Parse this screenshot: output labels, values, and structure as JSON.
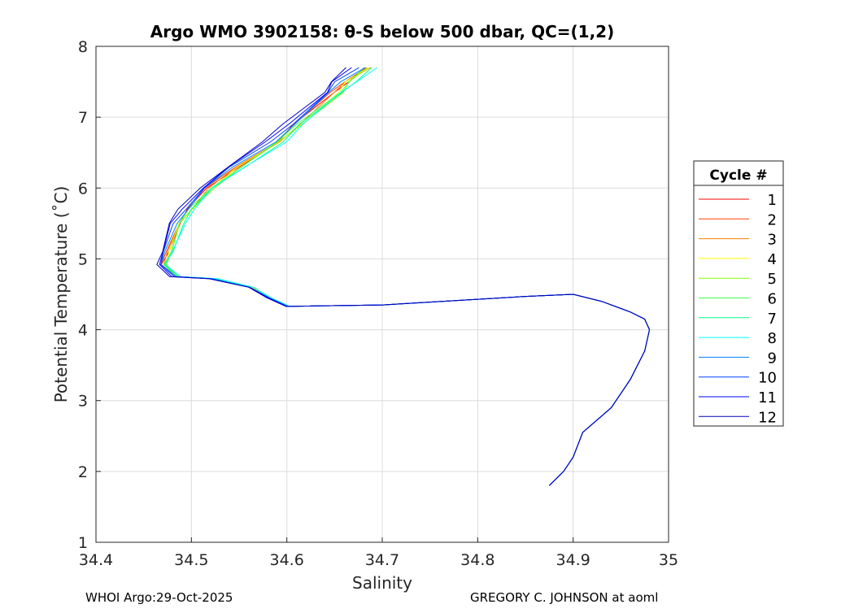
{
  "chart_data": {
    "type": "line",
    "title": "Argo WMO 3902158: θ-S below 500 dbar,  QC=(1,2)",
    "xlabel": "Salinity",
    "ylabel": "Potential Temperature (˚C)",
    "xlim": [
      34.4,
      35
    ],
    "ylim": [
      1,
      8
    ],
    "xticks": [
      "34.4",
      "34.5",
      "34.6",
      "34.7",
      "34.8",
      "34.9",
      "35"
    ],
    "yticks": [
      "1",
      "2",
      "3",
      "4",
      "5",
      "6",
      "7",
      "8"
    ],
    "grid": true,
    "legend_title": "Cycle #",
    "legend_position": "right",
    "base_curve": [
      [
        34.67,
        7.7
      ],
      [
        34.65,
        7.5
      ],
      [
        34.64,
        7.35
      ],
      [
        34.6,
        6.9
      ],
      [
        34.58,
        6.65
      ],
      [
        34.54,
        6.3
      ],
      [
        34.51,
        6.0
      ],
      [
        34.49,
        5.7
      ],
      [
        34.48,
        5.5
      ],
      [
        34.47,
        5.1
      ],
      [
        34.465,
        4.92
      ],
      [
        34.48,
        4.75
      ],
      [
        34.52,
        4.72
      ],
      [
        34.56,
        4.6
      ],
      [
        34.58,
        4.45
      ],
      [
        34.6,
        4.33
      ],
      [
        34.7,
        4.35
      ],
      [
        34.8,
        4.43
      ],
      [
        34.85,
        4.47
      ],
      [
        34.9,
        4.5
      ],
      [
        34.93,
        4.4
      ],
      [
        34.96,
        4.25
      ],
      [
        34.975,
        4.15
      ],
      [
        34.98,
        4.0
      ],
      [
        34.975,
        3.7
      ],
      [
        34.96,
        3.3
      ],
      [
        34.94,
        2.9
      ],
      [
        34.91,
        2.55
      ],
      [
        34.9,
        2.2
      ],
      [
        34.89,
        2.0
      ],
      [
        34.875,
        1.8
      ]
    ],
    "series": [
      {
        "name": "1",
        "color": "#ff0000",
        "salinity_offset": 0.012
      },
      {
        "name": "2",
        "color": "#ff4000",
        "salinity_offset": 0.01
      },
      {
        "name": "3",
        "color": "#ff8000",
        "salinity_offset": 0.014
      },
      {
        "name": "4",
        "color": "#ffff00",
        "salinity_offset": 0.016
      },
      {
        "name": "5",
        "color": "#80ff00",
        "salinity_offset": 0.018
      },
      {
        "name": "6",
        "color": "#40ff40",
        "salinity_offset": 0.015
      },
      {
        "name": "7",
        "color": "#00ff80",
        "salinity_offset": 0.02
      },
      {
        "name": "8",
        "color": "#00ffff",
        "salinity_offset": 0.022
      },
      {
        "name": "9",
        "color": "#0080ff",
        "salinity_offset": 0.008
      },
      {
        "name": "10",
        "color": "#0040ff",
        "salinity_offset": 0.004
      },
      {
        "name": "11",
        "color": "#0000ff",
        "salinity_offset": 0.0
      },
      {
        "name": "12",
        "color": "#0000c0",
        "salinity_offset": -0.004
      }
    ]
  },
  "footer": {
    "left": "WHOI Argo:29-Oct-2025",
    "right": "GREGORY C. JOHNSON at aoml"
  }
}
